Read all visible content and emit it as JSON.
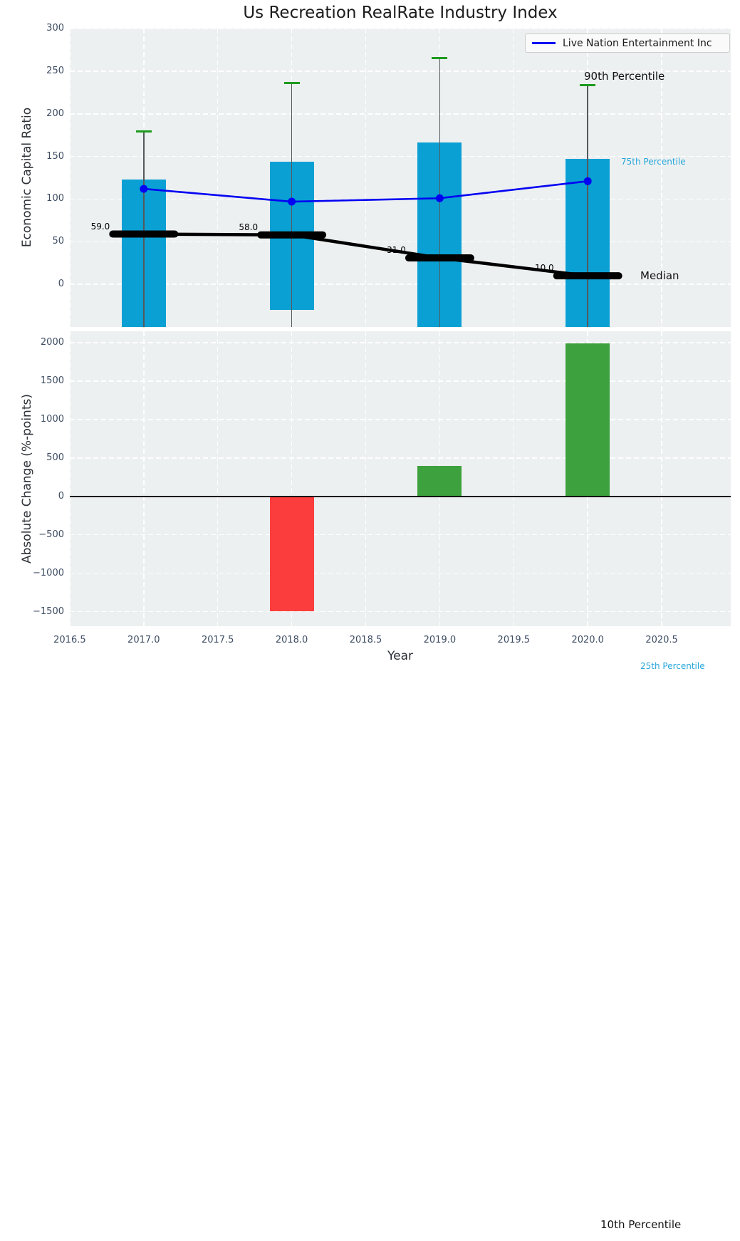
{
  "figure": {
    "title": "Us Recreation RealRate Industry Index"
  },
  "top_chart": {
    "ylabel": "Economic Capital Ratio",
    "legend_label": "Live Nation Entertainment Inc",
    "ytick_values": [
      0,
      50,
      100,
      150,
      200,
      250,
      300
    ],
    "ytick_labels": [
      "0",
      "50",
      "100",
      "150",
      "200",
      "250",
      "300"
    ]
  },
  "bottom_chart": {
    "ylabel": "Absolute Change (%-points)",
    "xlabel": "Year",
    "ytick_values": [
      2000,
      1500,
      1000,
      500,
      0,
      -500,
      -1000,
      -1500
    ],
    "ytick_labels": [
      "2000",
      "1500",
      "1000",
      "500",
      "0",
      "−500",
      "−1000",
      "−1500"
    ],
    "xtick_values": [
      2016.5,
      2017.0,
      2017.5,
      2018.0,
      2018.5,
      2019.0,
      2019.5,
      2020.0,
      2020.5
    ],
    "xtick_labels": [
      "2016.5",
      "2017.0",
      "2017.5",
      "2018.0",
      "2018.5",
      "2019.0",
      "2019.5",
      "2020.0",
      "2020.5"
    ]
  },
  "annotations": {
    "p90": "90th Percentile",
    "p75": "75th Percentile",
    "median": "Median",
    "p25": "25th Percentile",
    "p10": "10th Percentile"
  },
  "colors": {
    "bar_cyan": "#0aa0d4",
    "line_blue": "#0202f2",
    "cap_green": "#1e9b1e",
    "bar_green": "#3da13d",
    "bar_red": "#fb3d3d",
    "axes_bg": "#edf0f1",
    "grid_white": "#ffffff",
    "tick_text": "#3e4d63",
    "cyan_text": "#27a7da",
    "median_black": "#000000",
    "whisker_gray": "#55585c"
  },
  "chart_data": [
    {
      "type": "box-percentile+line",
      "title": "Us Recreation RealRate Industry Index",
      "ylabel": "Economic Capital Ratio",
      "ylim": [
        -50,
        300
      ],
      "xlim": [
        2016.5,
        2021.0
      ],
      "grid": true,
      "x": [
        2017,
        2018,
        2019,
        2020
      ],
      "p90": [
        179,
        236,
        265,
        234
      ],
      "p75": [
        123,
        144,
        166,
        147
      ],
      "median": [
        59,
        58,
        31,
        10
      ],
      "median_labels": [
        "59.0",
        "58.0",
        "31.0",
        "10.0"
      ],
      "p25_visible": [
        null,
        -30,
        null,
        null
      ],
      "series": [
        {
          "name": "Live Nation Entertainment Inc",
          "values": [
            112,
            97,
            101,
            121
          ]
        }
      ],
      "legend_position": "upper right",
      "notes": "Cyan bars span 75th to 25th percentile (25th clipped below axis except 2018); green caps mark 90th percentile; thick black dashes mark medians joined by a black line."
    },
    {
      "type": "bar",
      "ylabel": "Absolute Change (%-points)",
      "xlabel": "Year",
      "ylim": [
        -1690,
        2145
      ],
      "grid": true,
      "x": [
        2018,
        2019,
        2020
      ],
      "values": [
        -1490,
        395,
        1990
      ],
      "bar_colors": [
        "#fb3d3d",
        "#3da13d",
        "#3da13d"
      ],
      "zero_line": true
    }
  ]
}
